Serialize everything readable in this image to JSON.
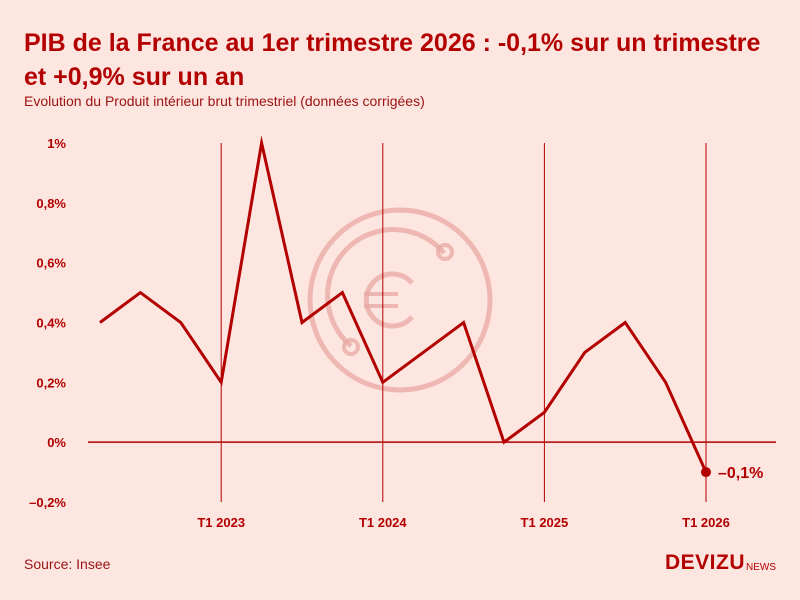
{
  "header": {
    "title": "PIB de la France au 1er trimestre 2026 : -0,1% sur un trimestre et +0,9% sur un an",
    "subtitle": "Evolution du Produit intérieur brut trimestriel (données corrigées)"
  },
  "footer": {
    "source": "Source: Insee",
    "brand_main": "DEVIZU",
    "brand_sub": "NEWS"
  },
  "colors": {
    "background": "#fde6e0",
    "accent": "#b30000",
    "watermark": "#e8a7a3"
  },
  "watermark_icon": "euro-coin-icon",
  "chart_data": {
    "type": "line",
    "title": "PIB de la France au 1er trimestre 2026 : -0,1% sur un trimestre et +0,9% sur un an",
    "subtitle": "Evolution du Produit intérieur brut trimestriel (données corrigées)",
    "xlabel": "",
    "ylabel": "",
    "x": [
      "T2 2022",
      "T3 2022",
      "T4 2022",
      "T1 2023",
      "T2 2023",
      "T3 2023",
      "T4 2023",
      "T1 2024",
      "T2 2024",
      "T3 2024",
      "T4 2024",
      "T1 2025",
      "T2 2025",
      "T3 2025",
      "T4 2025",
      "T1 2026"
    ],
    "series": [
      {
        "values": [
          0.4,
          0.5,
          0.4,
          0.2,
          1.0,
          0.4,
          0.5,
          0.2,
          0.3,
          0.4,
          0.0,
          0.1,
          0.3,
          0.4,
          0.2,
          -0.1
        ]
      }
    ],
    "x_tick_labels": [
      "T1 2023",
      "T1 2024",
      "T1 2025",
      "T1 2026"
    ],
    "x_tick_indices": [
      3,
      7,
      11,
      15
    ],
    "y_ticks": [
      1.0,
      0.8,
      0.6,
      0.4,
      0.2,
      0.0,
      -0.2
    ],
    "y_tick_labels": [
      "1%",
      "0,8%",
      "0,6%",
      "0,4%",
      "0,2%",
      "0%",
      "–0,2%"
    ],
    "ylim": [
      -0.2,
      1.0
    ],
    "last_point_label": "–0,1%",
    "grid": "vertical lines at T1 quarters",
    "legend": "none"
  }
}
